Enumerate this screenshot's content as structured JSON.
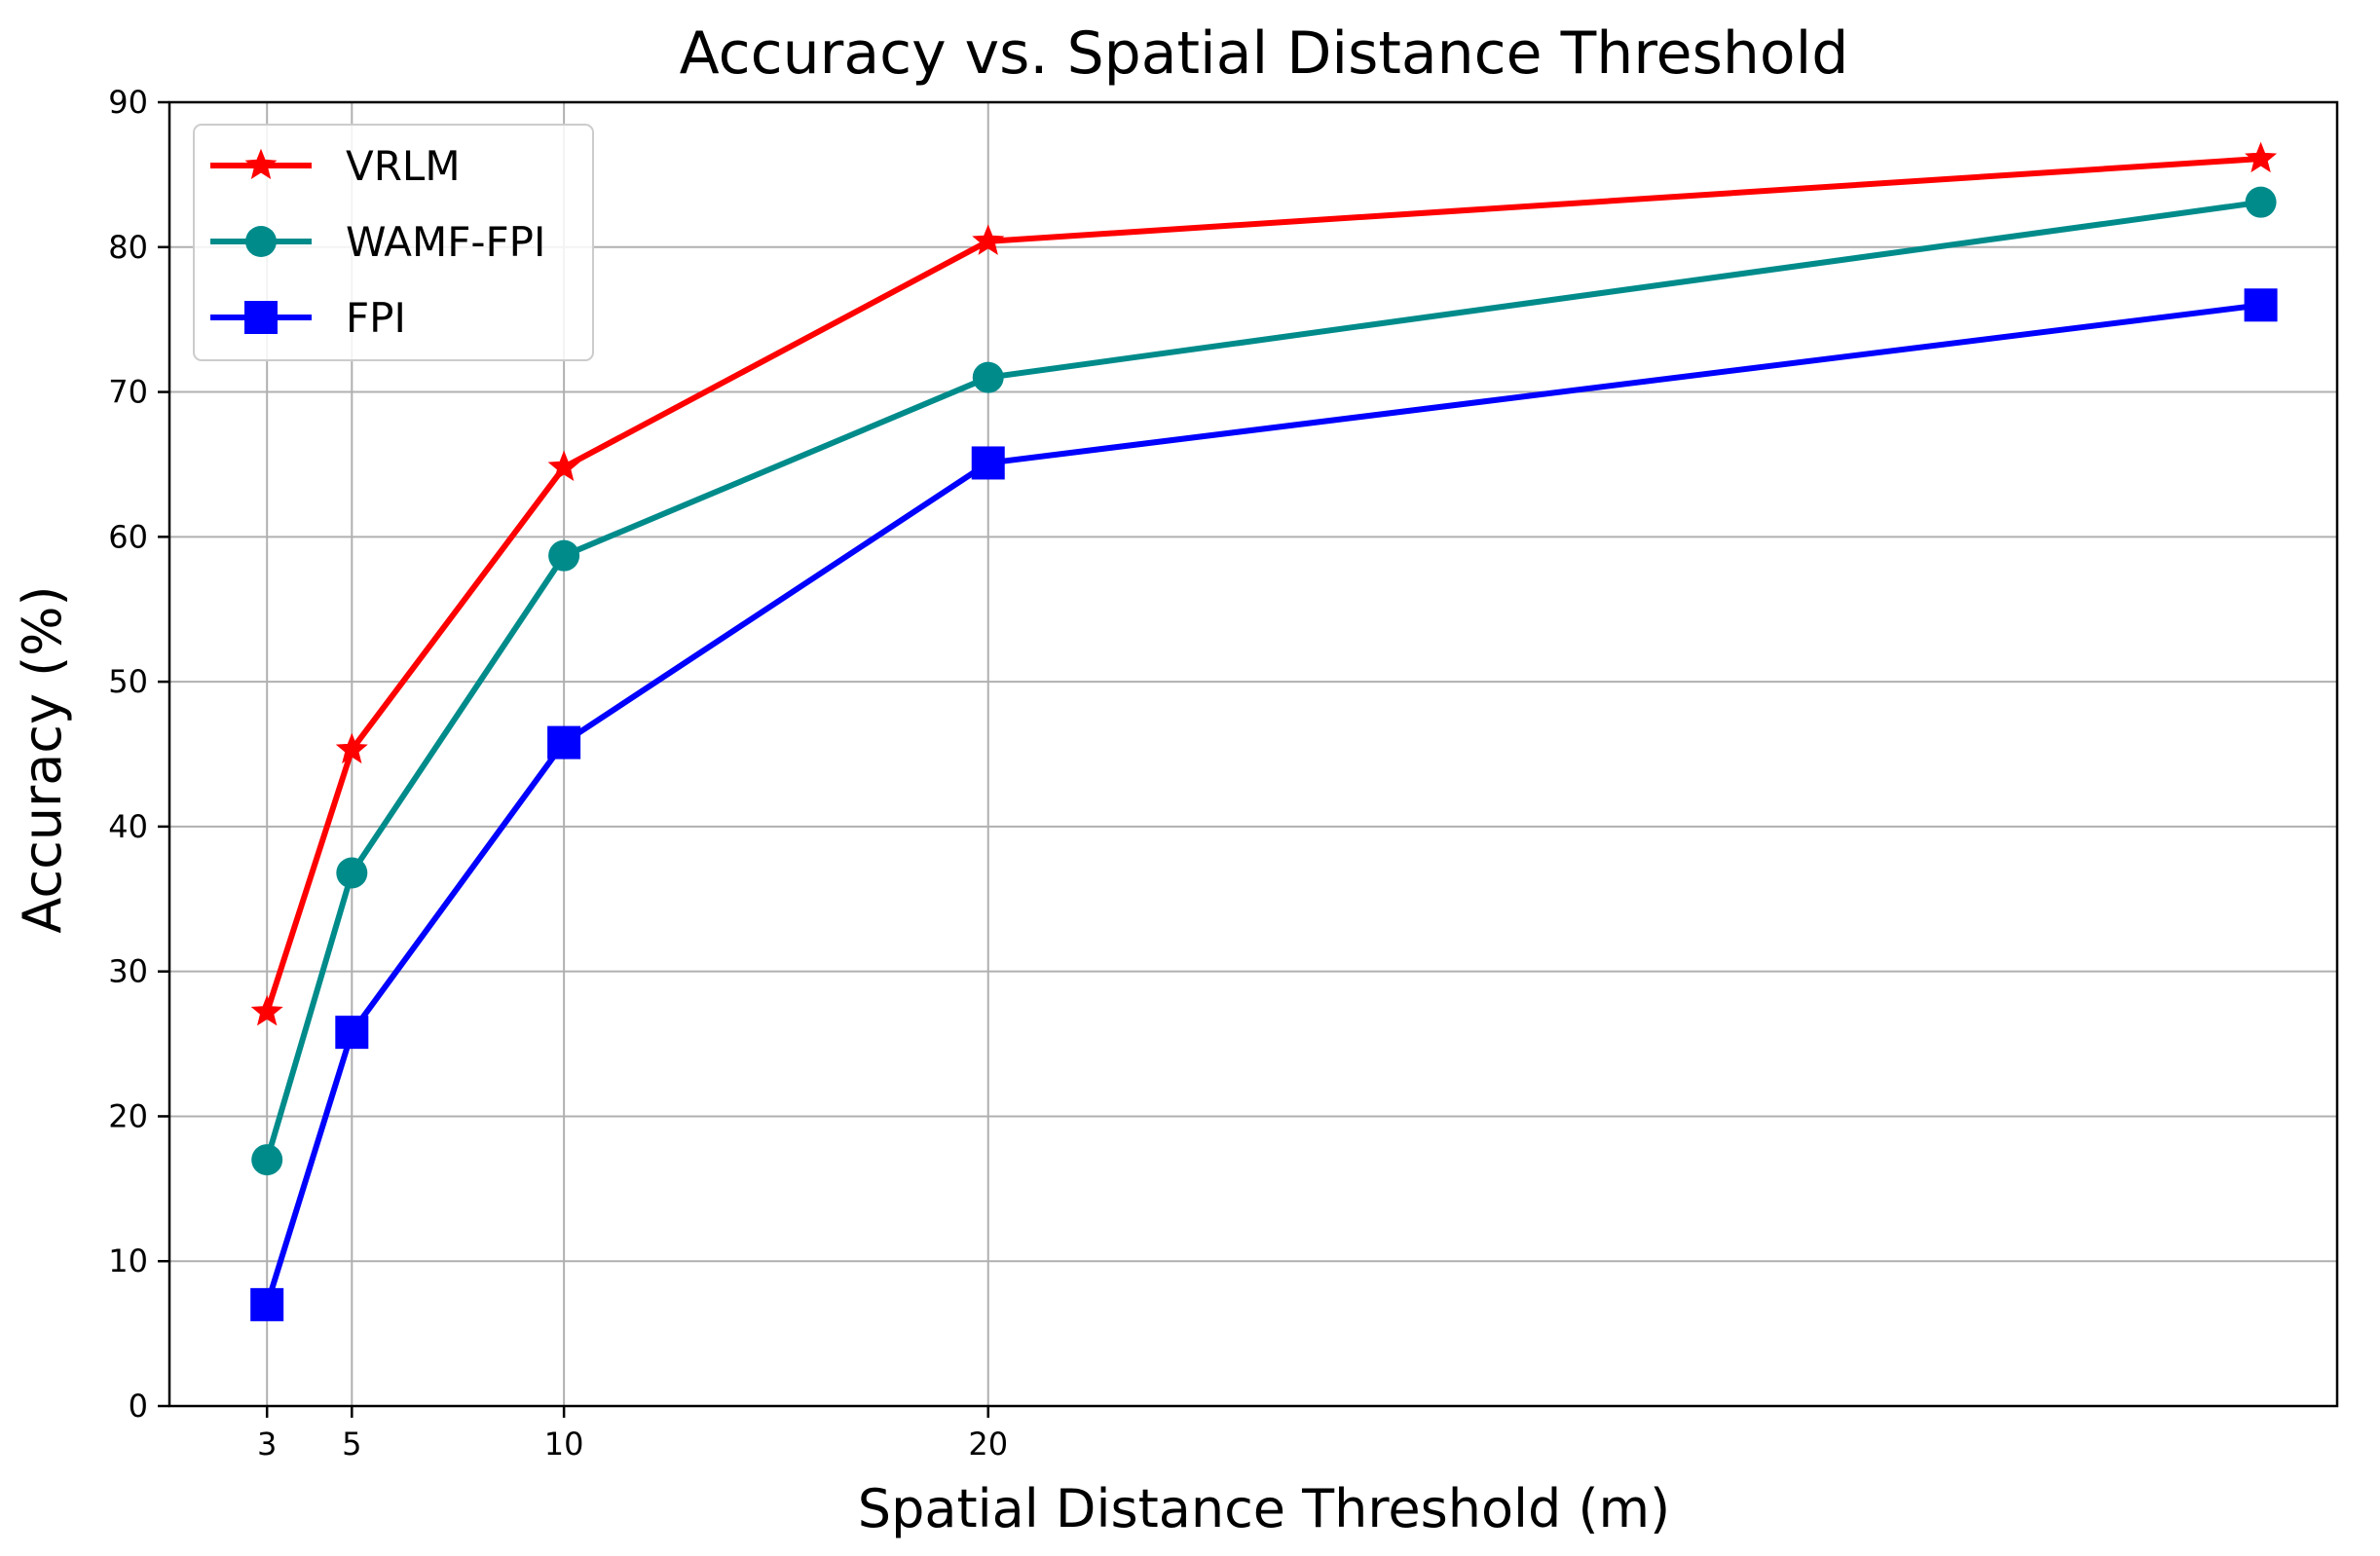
{
  "chart_data": {
    "type": "line",
    "title": "Accuracy vs. Spatial Distance Threshold",
    "xlabel": "Spatial Distance Threshold (m)",
    "ylabel": "Accuracy (%)",
    "x": [
      3,
      5,
      10,
      20,
      50
    ],
    "xticks": [
      3,
      5,
      10,
      20
    ],
    "xlim": [
      0.7,
      51.8
    ],
    "ylim": [
      0,
      90
    ],
    "yticks": [
      0,
      10,
      20,
      30,
      40,
      50,
      60,
      70,
      80,
      90
    ],
    "grid": true,
    "legend_position": "top-left",
    "series": [
      {
        "name": "VRLM",
        "color": "#ff0000",
        "marker": "star",
        "values": [
          27.2,
          45.3,
          64.8,
          80.4,
          86.1
        ]
      },
      {
        "name": "WAMF-FPI",
        "color": "#008b8b",
        "marker": "circle",
        "values": [
          17.0,
          36.8,
          58.7,
          71.0,
          83.1
        ]
      },
      {
        "name": "FPI",
        "color": "#0000ff",
        "marker": "square",
        "values": [
          7.0,
          25.8,
          45.8,
          65.1,
          76.0
        ]
      }
    ]
  }
}
